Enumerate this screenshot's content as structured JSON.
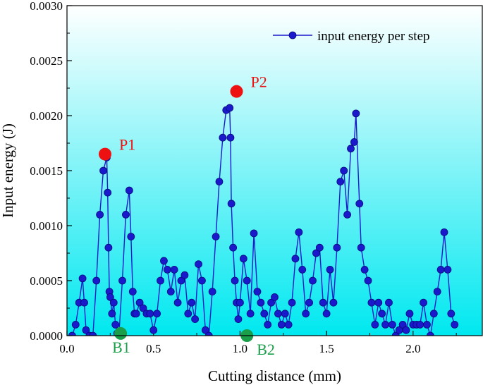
{
  "chart_data": {
    "type": "line",
    "title": "",
    "xlabel": "Cutting distance (mm)",
    "ylabel": "Input energy (J)",
    "xlim": [
      0.0,
      2.4
    ],
    "ylim": [
      0.0,
      0.003
    ],
    "x_ticks": [
      0.0,
      0.5,
      1.0,
      1.5,
      2.0
    ],
    "x_tick_labels": [
      "0.0",
      "0.5",
      "1.0",
      "1.5",
      "2.0"
    ],
    "y_ticks": [
      0.0,
      0.0005,
      0.001,
      0.0015,
      0.002,
      0.0025,
      0.003
    ],
    "y_tick_labels": [
      "0.0000",
      "0.0005",
      "0.0010",
      "0.0015",
      "0.0020",
      "0.0025",
      "0.0030"
    ],
    "legend": {
      "label": "input energy per step",
      "position": "top-right"
    },
    "colors": {
      "series": "#1a1acc",
      "peak_marker": "#ee1111",
      "bottom_marker": "#1a9e4a",
      "bg_top": "#ffffff",
      "bg_bottom": "#00e8f0"
    },
    "series": [
      {
        "name": "input energy per step",
        "points": [
          [
            0.03,
            0.0
          ],
          [
            0.05,
            0.0001
          ],
          [
            0.07,
            0.0003
          ],
          [
            0.09,
            0.00052
          ],
          [
            0.1,
            0.0003
          ],
          [
            0.11,
            5e-05
          ],
          [
            0.13,
            0.0
          ],
          [
            0.15,
            0.0
          ],
          [
            0.17,
            0.0005
          ],
          [
            0.19,
            0.0011
          ],
          [
            0.21,
            0.0015
          ],
          [
            0.23,
            0.00162
          ],
          [
            0.235,
            0.0013
          ],
          [
            0.24,
            0.0008
          ],
          [
            0.245,
            0.0004
          ],
          [
            0.25,
            0.00035
          ],
          [
            0.26,
            0.0002
          ],
          [
            0.27,
            0.0003
          ],
          [
            0.28,
            0.0001
          ],
          [
            0.29,
            2e-05
          ],
          [
            0.3,
            0.0
          ],
          [
            0.32,
            0.0005
          ],
          [
            0.34,
            0.0011
          ],
          [
            0.36,
            0.00132
          ],
          [
            0.37,
            0.0009
          ],
          [
            0.38,
            0.0004
          ],
          [
            0.39,
            0.0002
          ],
          [
            0.4,
            0.0002
          ],
          [
            0.42,
            0.0003
          ],
          [
            0.44,
            0.00025
          ],
          [
            0.46,
            0.0002
          ],
          [
            0.48,
            0.0002
          ],
          [
            0.5,
            5e-05
          ],
          [
            0.52,
            0.0002
          ],
          [
            0.54,
            0.0005
          ],
          [
            0.56,
            0.00068
          ],
          [
            0.58,
            0.0006
          ],
          [
            0.6,
            0.0004
          ],
          [
            0.62,
            0.0006
          ],
          [
            0.64,
            0.0003
          ],
          [
            0.66,
            0.0005
          ],
          [
            0.68,
            0.00055
          ],
          [
            0.7,
            0.0002
          ],
          [
            0.72,
            0.0003
          ],
          [
            0.74,
            0.00015
          ],
          [
            0.76,
            0.00065
          ],
          [
            0.78,
            0.0005
          ],
          [
            0.8,
            5e-05
          ],
          [
            0.82,
            0.0
          ],
          [
            0.84,
            0.0004
          ],
          [
            0.86,
            0.0009
          ],
          [
            0.88,
            0.0014
          ],
          [
            0.9,
            0.0018
          ],
          [
            0.92,
            0.00205
          ],
          [
            0.94,
            0.00207
          ],
          [
            0.945,
            0.0018
          ],
          [
            0.95,
            0.0012
          ],
          [
            0.96,
            0.0008
          ],
          [
            0.97,
            0.0005
          ],
          [
            0.98,
            0.0003
          ],
          [
            0.99,
            0.00015
          ],
          [
            1.0,
            0.0003
          ],
          [
            1.02,
            0.0007
          ],
          [
            1.04,
            0.0005
          ],
          [
            1.06,
            0.0002
          ],
          [
            1.08,
            0.00093
          ],
          [
            1.1,
            0.0004
          ],
          [
            1.12,
            0.0003
          ],
          [
            1.14,
            0.0002
          ],
          [
            1.16,
            0.0001
          ],
          [
            1.18,
            0.0003
          ],
          [
            1.2,
            0.00035
          ],
          [
            1.22,
            0.0002
          ],
          [
            1.24,
            0.0001
          ],
          [
            1.26,
            0.0002
          ],
          [
            1.28,
            0.0001
          ],
          [
            1.3,
            0.0003
          ],
          [
            1.32,
            0.0007
          ],
          [
            1.34,
            0.00094
          ],
          [
            1.36,
            0.0006
          ],
          [
            1.38,
            0.0002
          ],
          [
            1.4,
            0.0003
          ],
          [
            1.42,
            0.0005
          ],
          [
            1.44,
            0.00075
          ],
          [
            1.46,
            0.0008
          ],
          [
            1.48,
            0.0003
          ],
          [
            1.5,
            0.0002
          ],
          [
            1.52,
            0.0006
          ],
          [
            1.54,
            0.0003
          ],
          [
            1.56,
            0.0008
          ],
          [
            1.58,
            0.0014
          ],
          [
            1.6,
            0.0015
          ],
          [
            1.62,
            0.0011
          ],
          [
            1.64,
            0.0017
          ],
          [
            1.66,
            0.00176
          ],
          [
            1.67,
            0.00202
          ],
          [
            1.69,
            0.0012
          ],
          [
            1.7,
            0.0008
          ],
          [
            1.72,
            0.0006
          ],
          [
            1.74,
            0.0005
          ],
          [
            1.76,
            0.0003
          ],
          [
            1.78,
            0.0001
          ],
          [
            1.8,
            0.0003
          ],
          [
            1.82,
            0.0002
          ],
          [
            1.84,
            0.0001
          ],
          [
            1.86,
            0.0003
          ],
          [
            1.88,
            0.0001
          ],
          [
            1.9,
            0.0
          ],
          [
            1.92,
            5e-05
          ],
          [
            1.94,
            0.0001
          ],
          [
            1.96,
            5e-05
          ],
          [
            1.98,
            0.0002
          ],
          [
            2.0,
            0.0001
          ],
          [
            2.02,
            0.0001
          ],
          [
            2.04,
            0.0001
          ],
          [
            2.06,
            0.0003
          ],
          [
            2.08,
            0.0001
          ],
          [
            2.1,
            0.0
          ],
          [
            2.12,
            0.0002
          ],
          [
            2.14,
            0.0004
          ],
          [
            2.16,
            0.0006
          ],
          [
            2.18,
            0.00094
          ],
          [
            2.2,
            0.0006
          ],
          [
            2.22,
            0.0002
          ],
          [
            2.24,
            0.0001
          ]
        ]
      }
    ],
    "annotations": [
      {
        "label": "P1",
        "x": 0.22,
        "y": 0.00165,
        "kind": "peak"
      },
      {
        "label": "P2",
        "x": 0.98,
        "y": 0.00222,
        "kind": "peak"
      },
      {
        "label": "B1",
        "x": 0.31,
        "y": 2e-05,
        "kind": "bottom"
      },
      {
        "label": "B2",
        "x": 1.04,
        "y": 0.0,
        "kind": "bottom"
      }
    ]
  }
}
